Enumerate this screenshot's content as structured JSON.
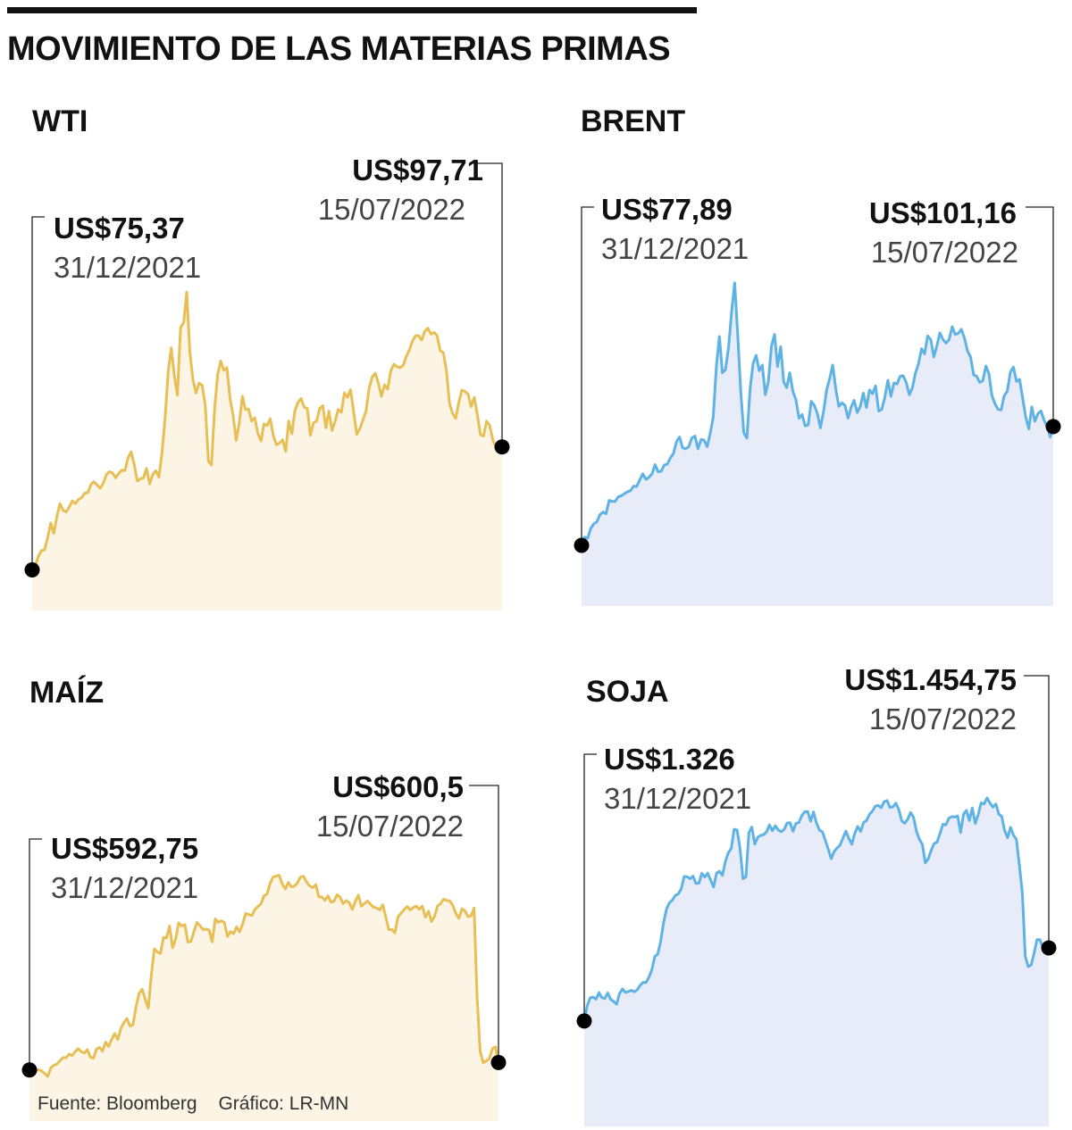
{
  "title": "MOVIMIENTO DE LAS MATERIAS PRIMAS",
  "source": "Fuente: Bloomberg",
  "credit": "Gráfico: LR-MN",
  "colors": {
    "gold_line": "#e7bf55",
    "gold_fill": "#fcf5e6",
    "blue_line": "#5eb3e4",
    "blue_fill": "#e8ecf8",
    "marker": "#000000"
  },
  "chart_data": [
    {
      "type": "area",
      "title": "WTI",
      "start": {
        "label": "US$75,37",
        "date": "31/12/2021",
        "value": 75.37
      },
      "end": {
        "label": "US$97,71",
        "date": "15/07/2022",
        "value": 97.71
      },
      "ylim": [
        68,
        127
      ],
      "values": [
        75.37,
        76.1,
        77.8,
        78.9,
        79.0,
        81.2,
        83.9,
        82.0,
        85.1,
        87.4,
        86.2,
        85.9,
        86.8,
        87.9,
        87.4,
        88.2,
        88.5,
        89.3,
        89.4,
        90.9,
        91.4,
        90.8,
        90.2,
        91.1,
        92.7,
        93.2,
        93.0,
        92.1,
        92.9,
        93.5,
        93.4,
        95.7,
        96.8,
        94.6,
        91.5,
        91.9,
        92.1,
        93.8,
        91.0,
        92.7,
        93.4,
        92.2,
        96.6,
        103.0,
        111.5,
        115.7,
        110.6,
        107.1,
        119.4,
        120.3,
        125.8,
        115.0,
        110.0,
        107.5,
        109.3,
        108.9,
        105.2,
        95.2,
        94.4,
        104.6,
        110.8,
        113.3,
        111.6,
        112.1,
        106.5,
        103.5,
        98.9,
        102.1,
        106.9,
        104.5,
        104.6,
        102.4,
        103.0,
        100.2,
        98.8,
        101.9,
        101.6,
        102.8,
        99.8,
        98.1,
        98.4,
        99.0,
        96.9,
        102.4,
        100.1,
        104.3,
        105.8,
        106.5,
        104.9,
        104.7,
        99.8,
        102.1,
        102.4,
        104.7,
        105.2,
        101.2,
        104.2,
        100.7,
        102.4,
        104.5,
        104.0,
        107.5,
        106.7,
        108.1,
        104.1,
        100.0,
        101.0,
        102.6,
        104.2,
        108.4,
        110.4,
        111.1,
        109.3,
        106.9,
        109.0,
        108.2,
        111.5,
        112.7,
        112.3,
        112.1,
        112.5,
        114.1,
        115.3,
        116.9,
        117.9,
        117.9,
        117.1,
        118.7,
        119.3,
        118.2,
        118.5,
        117.9,
        115.2,
        114.8,
        111.6,
        105.6,
        103.8,
        102.9,
        105.8,
        108.0,
        107.8,
        107.3,
        105.0,
        106.7,
        103.6,
        99.9,
        99.7,
        102.4,
        101.6,
        99.0,
        97.7,
        97.6,
        97.71
      ]
    },
    {
      "type": "area",
      "title": "BRENT",
      "start": {
        "label": "US$77,89",
        "date": "31/12/2021",
        "value": 77.89
      },
      "end": {
        "label": "US$101,16",
        "date": "15/07/2022",
        "value": 101.16
      },
      "ylim": [
        66,
        134
      ],
      "values": [
        77.89,
        79.5,
        79.3,
        81.2,
        82.1,
        82.5,
        83.9,
        84.4,
        84.1,
        86.7,
        86.5,
        86.5,
        87.4,
        87.6,
        88.0,
        88.4,
        88.6,
        89.5,
        89.4,
        90.7,
        91.9,
        90.8,
        91.2,
        91.9,
        93.7,
        92.3,
        92.4,
        93.6,
        93.8,
        95.0,
        95.9,
        98.2,
        99.1,
        97.0,
        96.8,
        97.2,
        98.9,
        99.3,
        96.8,
        98.6,
        98.5,
        97.2,
        99.8,
        103.0,
        112.9,
        118.8,
        111.7,
        112.3,
        116.7,
        123.7,
        129.3,
        118.9,
        107.7,
        99.9,
        98.9,
        108.4,
        113.5,
        115.1,
        112.1,
        113.2,
        107.4,
        110.0,
        116.9,
        119.2,
        112.9,
        116.8,
        109.9,
        108.8,
        111.7,
        108.0,
        106.4,
        102.8,
        103.5,
        101.3,
        101.5,
        106.1,
        105.3,
        103.7,
        100.9,
        104.1,
        108.3,
        110.5,
        113.2,
        108.5,
        105.1,
        105.8,
        105.3,
        102.8,
        104.9,
        106.3,
        103.9,
        105.1,
        107.7,
        104.9,
        108.3,
        107.6,
        109.1,
        104.2,
        104.5,
        106.8,
        110.2,
        107.1,
        109.7,
        109.5,
        111.0,
        111.1,
        109.8,
        107.4,
        108.7,
        111.6,
        113.4,
        116.4,
        115.4,
        118.9,
        118.2,
        114.8,
        116.9,
        119.5,
        118.2,
        117.5,
        118.2,
        120.7,
        119.2,
        119.4,
        120.2,
        118.5,
        116.0,
        114.8,
        111.3,
        111.0,
        109.8,
        110.1,
        113.0,
        111.5,
        107.2,
        105.6,
        104.5,
        104.4,
        107.2,
        108.1,
        111.8,
        112.8,
        110.0,
        110.4,
        106.8,
        103.1,
        100.7,
        105.0,
        102.2,
        103.7,
        104.2,
        102.4,
        101.2,
        99.1,
        101.16
      ]
    },
    {
      "type": "area",
      "title": "MAÍZ",
      "start": {
        "label": "US$592,75",
        "date": "31/12/2021",
        "value": 592.75
      },
      "end": {
        "label": "US$600,5",
        "date": "15/07/2022",
        "value": 600.5
      },
      "ylim": [
        540,
        905
      ],
      "values": [
        592.75,
        594.8,
        591.9,
        593.1,
        591.8,
        589.3,
        586.1,
        595.1,
        597.6,
        598.8,
        602.4,
        605.5,
        605.3,
        609.2,
        607.6,
        611.6,
        614.8,
        611.6,
        610.3,
        613.7,
        606.0,
        604.8,
        614.3,
        616.1,
        612.3,
        621.5,
        617.0,
        624.4,
        630.4,
        624.2,
        635.7,
        641.8,
        645.8,
        638.1,
        639.5,
        658.3,
        671.8,
        676.2,
        665.8,
        656.6,
        691.1,
        717.8,
        714.7,
        713.1,
        729.6,
        729.2,
        741.4,
        719.0,
        727.9,
        744.6,
        741.5,
        743.0,
        724.8,
        725.5,
        735.7,
        745.3,
        741.7,
        737.9,
        738.2,
        737.3,
        725.1,
        748.9,
        745.1,
        746.8,
        745.0,
        730.6,
        735.7,
        733.6,
        740.4,
        735.5,
        743.5,
        754.4,
        753.3,
        752.1,
        758.5,
        761.6,
        764.2,
        772.6,
        774.3,
        785.3,
        791.9,
        793.1,
        793.8,
        784.8,
        779.7,
        786.5,
        781.9,
        782.6,
        786.0,
        792.1,
        792.7,
        786.8,
        782.9,
        781.0,
        784.3,
        771.4,
        771.5,
        767.9,
        772.6,
        766.1,
        767.1,
        773.7,
        771.3,
        764.5,
        767.7,
        765.5,
        758.6,
        767.0,
        773.3,
        761.8,
        764.7,
        767.2,
        764.0,
        760.8,
        760.1,
        758.1,
        763.3,
        750.4,
        737.6,
        737.9,
        734.3,
        751.1,
        754.6,
        758.3,
        761.6,
        758.1,
        760.6,
        761.9,
        758.8,
        762.0,
        750.5,
        756.7,
        746.1,
        751.4,
        762.0,
        764.5,
        769.1,
        767.8,
        767.3,
        762.8,
        754.4,
        749.2,
        759.2,
        757.1,
        751.1,
        752.0,
        759.9,
        667.3,
        611.8,
        600.2,
        602.3,
        604.4,
        614.8,
        616.7,
        600.5
      ]
    },
    {
      "type": "area",
      "title": "SOJA",
      "start": {
        "label": "US$1.326",
        "date": "31/12/2021",
        "value": 1326
      },
      "end": {
        "label": "US$1.454,75",
        "date": "15/07/2022",
        "value": 1454.75
      },
      "ylim": [
        1140,
        1820
      ],
      "values": [
        1326,
        1352.6,
        1366.6,
        1368.1,
        1364.5,
        1375.9,
        1367.2,
        1365.5,
        1375.4,
        1364.1,
        1360.5,
        1355.5,
        1374.2,
        1382.6,
        1376.4,
        1377.8,
        1380.1,
        1377.4,
        1380.7,
        1388.5,
        1394.0,
        1393.8,
        1403.1,
        1416.4,
        1439.6,
        1443.8,
        1466.7,
        1500.2,
        1523.8,
        1534.4,
        1539.3,
        1547.4,
        1550.1,
        1559.0,
        1580.7,
        1580.4,
        1576.8,
        1581.3,
        1568.5,
        1568.9,
        1586.4,
        1579.8,
        1586.8,
        1574.5,
        1562.4,
        1586.5,
        1589.8,
        1582.7,
        1607.2,
        1622.6,
        1630.5,
        1664.0,
        1662.7,
        1630.0,
        1576.9,
        1580.1,
        1657.7,
        1668.0,
        1637.9,
        1650.0,
        1653.3,
        1654.6,
        1659.4,
        1671.7,
        1661.5,
        1670.2,
        1662.9,
        1659.7,
        1663.8,
        1675.1,
        1675.7,
        1660.5,
        1674.5,
        1675.8,
        1688.1,
        1694.9,
        1695.5,
        1678.4,
        1694.6,
        1674.8,
        1662.6,
        1659.4,
        1644.6,
        1628.6,
        1612.3,
        1624.6,
        1631.1,
        1635.9,
        1648.6,
        1660.8,
        1647.7,
        1637.7,
        1656.7,
        1669.0,
        1660.3,
        1675.9,
        1679.5,
        1690.1,
        1695.8,
        1704.6,
        1706.2,
        1702.1,
        1712.6,
        1714.7,
        1702.4,
        1703.6,
        1710.2,
        1698.1,
        1678.9,
        1674.7,
        1681.3,
        1693.6,
        1685.4,
        1660.5,
        1646.4,
        1637.2,
        1604.8,
        1612.2,
        1627.0,
        1638.6,
        1641.3,
        1656.4,
        1672.9,
        1671.9,
        1683.2,
        1686.4,
        1685.5,
        1687.4,
        1658.3,
        1690.4,
        1697.3,
        1679.5,
        1701.4,
        1674.2,
        1689.7,
        1710.6,
        1708.7,
        1719.2,
        1710.3,
        1703.2,
        1708.6,
        1690.6,
        1686.8,
        1662.0,
        1649.1,
        1667.5,
        1653.6,
        1646.0,
        1600.6,
        1552.3,
        1440.0,
        1421.9,
        1424.8,
        1445.0,
        1469.3,
        1469.4,
        1455.1,
        1456.4,
        1454.75
      ]
    }
  ]
}
